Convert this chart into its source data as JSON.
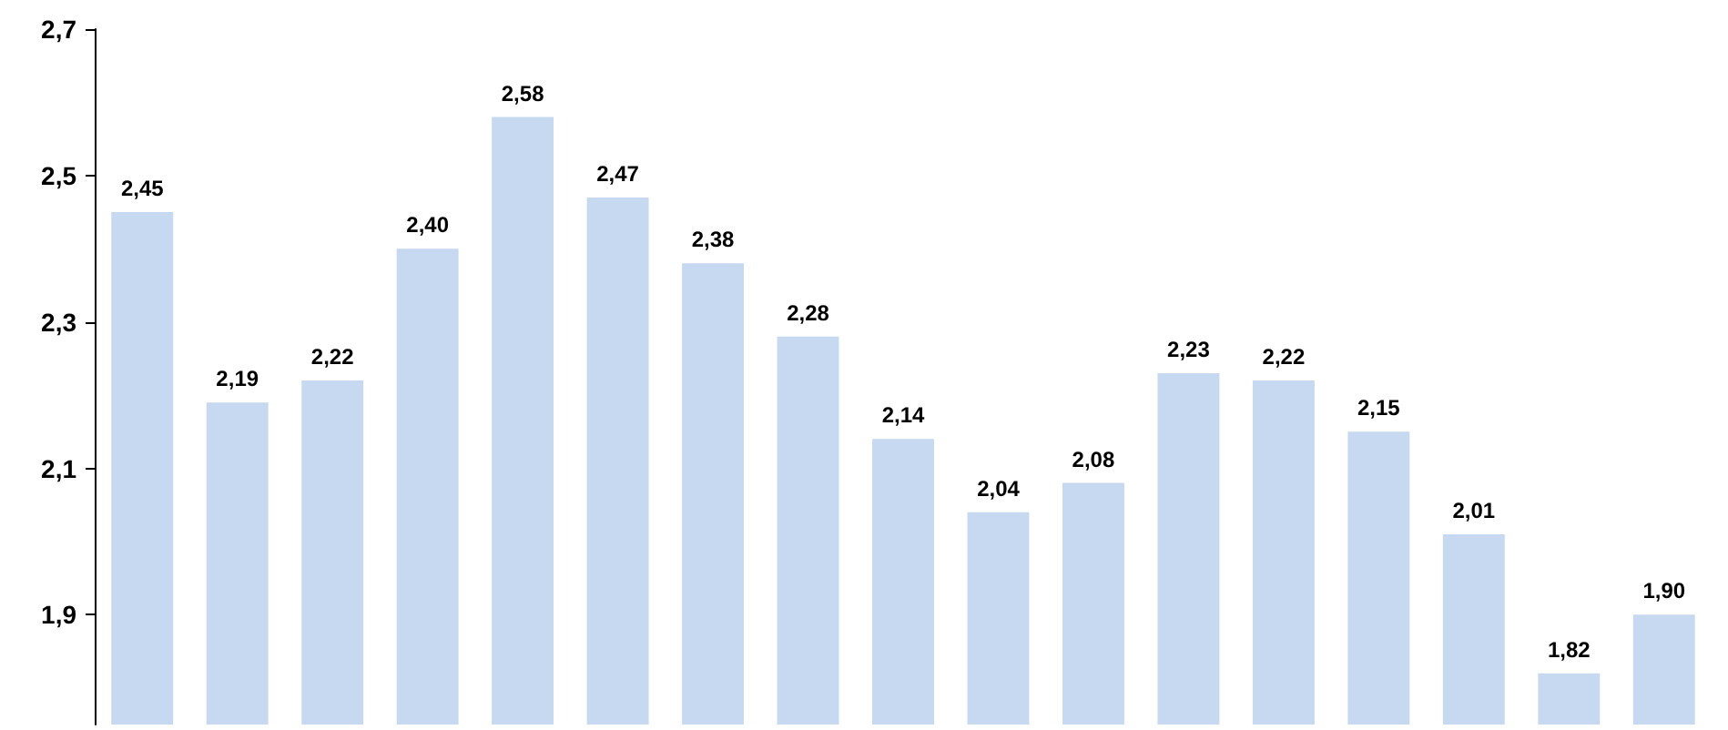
{
  "chart_data": {
    "type": "bar",
    "categories": [
      null,
      null,
      null,
      null,
      null,
      null,
      null,
      null,
      null,
      null,
      null,
      null,
      null,
      null,
      null,
      null,
      null
    ],
    "values": [
      2.45,
      2.19,
      2.22,
      2.4,
      2.58,
      2.47,
      2.38,
      2.28,
      2.14,
      2.04,
      2.08,
      2.23,
      2.22,
      2.15,
      2.01,
      1.82,
      1.9
    ],
    "value_labels": [
      "2,45",
      "2,19",
      "2,22",
      "2,40",
      "2,58",
      "2,47",
      "2,38",
      "2,28",
      "2,14",
      "2,04",
      "2,08",
      "2,23",
      "2,22",
      "2,15",
      "2,01",
      "1,82",
      "1,90"
    ],
    "color": "#c6d9f0",
    "ylim": [
      1.75,
      2.7
    ],
    "yticks": [
      {
        "value": 1.9,
        "label": "1,9"
      },
      {
        "value": 2.1,
        "label": "2,1"
      },
      {
        "value": 2.3,
        "label": "2,3"
      },
      {
        "value": 2.5,
        "label": "2,5"
      },
      {
        "value": 2.7,
        "label": "2,7"
      }
    ],
    "tick_labels": "y"
  }
}
